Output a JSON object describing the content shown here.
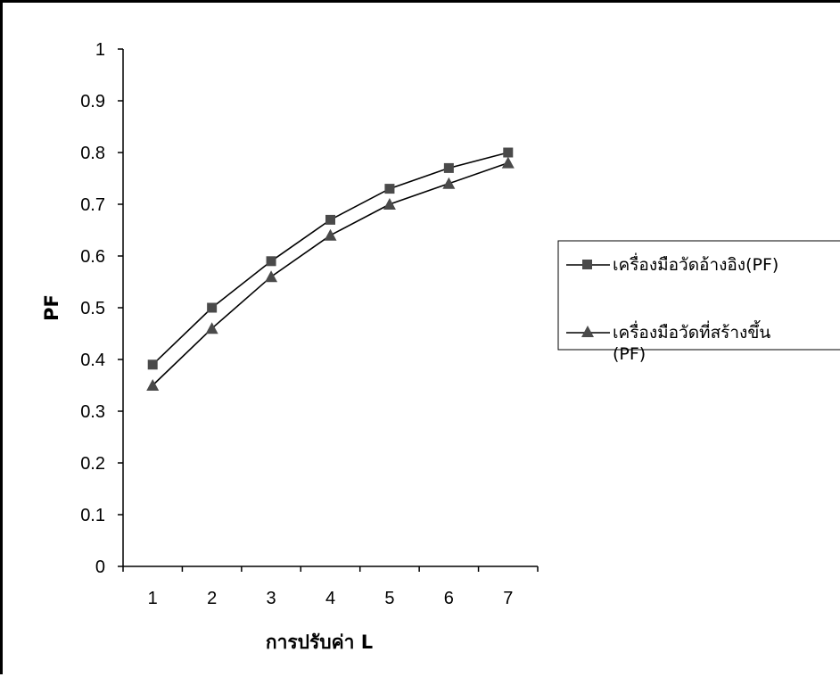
{
  "chart_data": {
    "type": "line",
    "title": "",
    "xlabel": "การปรับค่า L",
    "ylabel": "PF",
    "categories": [
      "1",
      "2",
      "3",
      "4",
      "5",
      "6",
      "7"
    ],
    "y_ticks": [
      "0",
      "0.1",
      "0.2",
      "0.3",
      "0.4",
      "0.5",
      "0.6",
      "0.7",
      "0.8",
      "0.9",
      "1"
    ],
    "ylim": [
      0,
      1
    ],
    "grid": false,
    "legend_position": "right",
    "series": [
      {
        "name": "เครื่องมือวัดอ้างอิง(PF)",
        "marker": "square",
        "color": "#000000",
        "values": [
          0.39,
          0.5,
          0.59,
          0.67,
          0.73,
          0.77,
          0.8
        ]
      },
      {
        "name": "เครื่องมือวัดที่สร้างขึ้น (PF)",
        "marker": "triangle",
        "color": "#000000",
        "values": [
          0.35,
          0.46,
          0.56,
          0.64,
          0.7,
          0.74,
          0.78
        ]
      }
    ]
  }
}
